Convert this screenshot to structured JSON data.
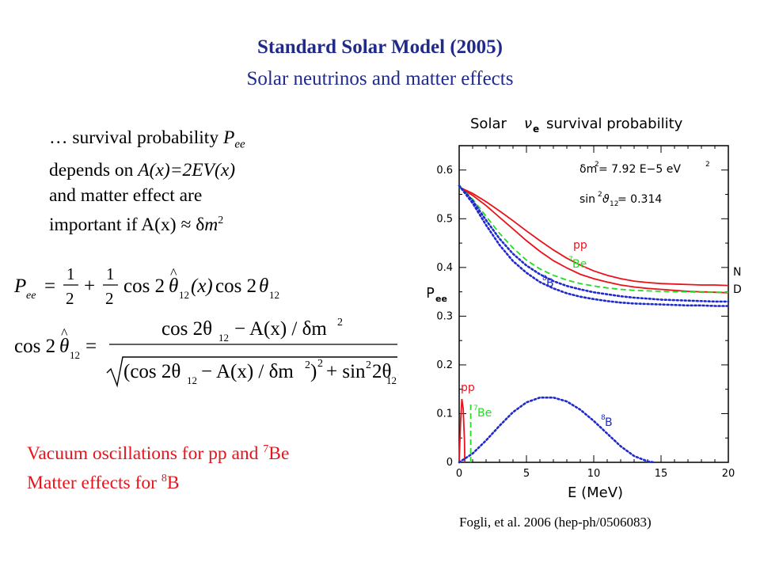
{
  "header": {
    "title": "Standard Solar Model (2005)",
    "subtitle": "Solar neutrinos and matter effects"
  },
  "intro": {
    "l1_a": "… survival probability ",
    "l1_P": "P",
    "l1_sub": "ee",
    "l2_a": "depends on ",
    "l2_b": "A(x)=2EV(x)",
    "l3": "and matter effect are",
    "l4_a": "important if A(x) ",
    "l4_approx": "≈",
    "l4_dm": " δ",
    "l4_m": "m",
    "l4_sup": "2"
  },
  "equations": {
    "eq1": {
      "lhs": "P",
      "lhs_sub": "ee",
      "eq": "=",
      "f1_num": "1",
      "f1_den": "2",
      "plus": "+",
      "f2_num": "1",
      "f2_den": "2",
      "cos": "cos 2",
      "theta": "θ",
      "hat": "^",
      "sub12": "12",
      "arg": "(x)",
      "cos2": "cos 2"
    },
    "eq2": {
      "lhs_cos": "cos 2",
      "theta": "θ",
      "hat": "^",
      "sub12": "12",
      "eq": "=",
      "num": "cos 2θ",
      "num_minus": "− A(x) / δm",
      "sup2": "2",
      "den_open": "(cos 2θ",
      "den_mid": "− A(x) / δm",
      "den_close": ")",
      "den_plus": "+ sin",
      "den_tail": "2θ"
    }
  },
  "footer_red": {
    "l1_a": "Vacuum oscillations for pp and ",
    "l1_sup": "7",
    "l1_b": "Be",
    "l2_a": "Matter effects for ",
    "l2_sup": "8",
    "l2_b": "B"
  },
  "citation": "Fogli, et al. 2006 (hep-ph/0506083)",
  "chart_data": {
    "type": "line",
    "title": "Solar νe survival probability",
    "title_a": "Solar",
    "title_nu": "ν",
    "title_nu_sub": "e",
    "title_b": "survival probability",
    "xlabel": "E (MeV)",
    "ylabel": "P",
    "ylabel_sub": "ee",
    "xlim": [
      0,
      20
    ],
    "ylim": [
      0,
      0.65
    ],
    "xticks": [
      0,
      5,
      10,
      15,
      20
    ],
    "xtick_labels": [
      "0",
      "5",
      "10",
      "15",
      "20"
    ],
    "yticks": [
      0,
      0.1,
      0.2,
      0.3,
      0.4,
      0.5,
      0.6
    ],
    "ytick_labels": [
      "0",
      "0.1",
      "0.2",
      "0.3",
      "0.4",
      "0.5",
      "0.6"
    ],
    "params": {
      "l1_a": "δm",
      "l1_sup": "2",
      "l1_b": " = 7.92 E−5 eV",
      "l1_sup2": "2",
      "l2_a": "sin",
      "l2_sup": "2",
      "l2_b": "ϑ",
      "l2_sub": "12",
      "l2_c": " = 0.314"
    },
    "right_labels": [
      "N",
      "D"
    ],
    "colors": {
      "pp": "#e8131b",
      "be7": "#22dd22",
      "b8": "#1f2acc"
    },
    "series": [
      {
        "name": "pp",
        "label": "pp",
        "style": "solid",
        "color": "#e8131b",
        "x": [
          0,
          1,
          2,
          3,
          4,
          5,
          6,
          7,
          8,
          9,
          10,
          11,
          12,
          13,
          14,
          15,
          16,
          17,
          18,
          19,
          20
        ],
        "y": [
          0.565,
          0.552,
          0.535,
          0.516,
          0.496,
          0.475,
          0.455,
          0.436,
          0.419,
          0.405,
          0.393,
          0.384,
          0.377,
          0.372,
          0.369,
          0.367,
          0.366,
          0.365,
          0.364,
          0.364,
          0.363
        ]
      },
      {
        "name": "pp-D",
        "label": "",
        "style": "solid",
        "color": "#e8131b",
        "x": [
          0,
          1,
          2,
          3,
          4,
          5,
          6,
          7,
          8,
          9,
          10,
          11,
          12,
          13,
          14,
          15,
          16,
          17,
          18,
          19,
          20
        ],
        "y": [
          0.565,
          0.548,
          0.527,
          0.503,
          0.479,
          0.455,
          0.433,
          0.414,
          0.399,
          0.386,
          0.377,
          0.37,
          0.364,
          0.36,
          0.357,
          0.355,
          0.353,
          0.351,
          0.35,
          0.349,
          0.348
        ]
      },
      {
        "name": "7Be",
        "label": "Be",
        "label_sup": "7",
        "style": "dashed",
        "color": "#22dd22",
        "x": [
          0,
          1,
          2,
          3,
          4,
          5,
          6,
          7,
          8,
          9,
          10,
          11,
          12,
          13,
          14,
          15,
          16,
          17,
          18,
          19,
          20
        ],
        "y": [
          0.568,
          0.54,
          0.505,
          0.47,
          0.44,
          0.415,
          0.397,
          0.384,
          0.374,
          0.367,
          0.362,
          0.358,
          0.355,
          0.353,
          0.352,
          0.351,
          0.35,
          0.35,
          0.349,
          0.349,
          0.349
        ]
      },
      {
        "name": "8B",
        "label": "B",
        "label_sup": "8",
        "style": "dotted",
        "color": "#1f2acc",
        "x": [
          0,
          1,
          2,
          3,
          4,
          5,
          6,
          7,
          8,
          9,
          10,
          11,
          12,
          13,
          14,
          15,
          16,
          17,
          18,
          19,
          20
        ],
        "y": [
          0.568,
          0.537,
          0.497,
          0.459,
          0.428,
          0.404,
          0.386,
          0.372,
          0.362,
          0.355,
          0.349,
          0.345,
          0.341,
          0.338,
          0.336,
          0.334,
          0.333,
          0.332,
          0.331,
          0.33,
          0.33
        ]
      },
      {
        "name": "8B-D",
        "label": "",
        "style": "dotted",
        "color": "#1f2acc",
        "x": [
          0,
          1,
          2,
          3,
          4,
          5,
          6,
          7,
          8,
          9,
          10,
          11,
          12,
          13,
          14,
          15,
          16,
          17,
          18,
          19,
          20
        ],
        "y": [
          0.568,
          0.532,
          0.487,
          0.446,
          0.413,
          0.389,
          0.37,
          0.357,
          0.347,
          0.34,
          0.335,
          0.331,
          0.328,
          0.326,
          0.325,
          0.324,
          0.323,
          0.322,
          0.322,
          0.321,
          0.321
        ]
      }
    ],
    "spectra": [
      {
        "name": "pp spectrum",
        "label": "pp",
        "style": "solid",
        "color": "#e8131b",
        "x": [
          0,
          0.1,
          0.2,
          0.3,
          0.4,
          0.42
        ],
        "y": [
          0.0,
          0.08,
          0.13,
          0.11,
          0.04,
          0.0
        ]
      },
      {
        "name": "7Be line",
        "label": "Be",
        "label_sup": "7",
        "style": "dashed",
        "color": "#22dd22",
        "x": [
          0.86,
          0.86
        ],
        "y": [
          0.0,
          0.12
        ]
      },
      {
        "name": "8B spectrum",
        "label": "B",
        "label_sup": "8",
        "style": "dotted",
        "color": "#1f2acc",
        "x": [
          0,
          1,
          2,
          3,
          4,
          5,
          6,
          7,
          8,
          9,
          10,
          11,
          12,
          13,
          14,
          14.5
        ],
        "y": [
          0.0,
          0.018,
          0.045,
          0.075,
          0.103,
          0.123,
          0.133,
          0.133,
          0.125,
          0.108,
          0.085,
          0.059,
          0.033,
          0.013,
          0.002,
          0.0
        ]
      }
    ]
  }
}
